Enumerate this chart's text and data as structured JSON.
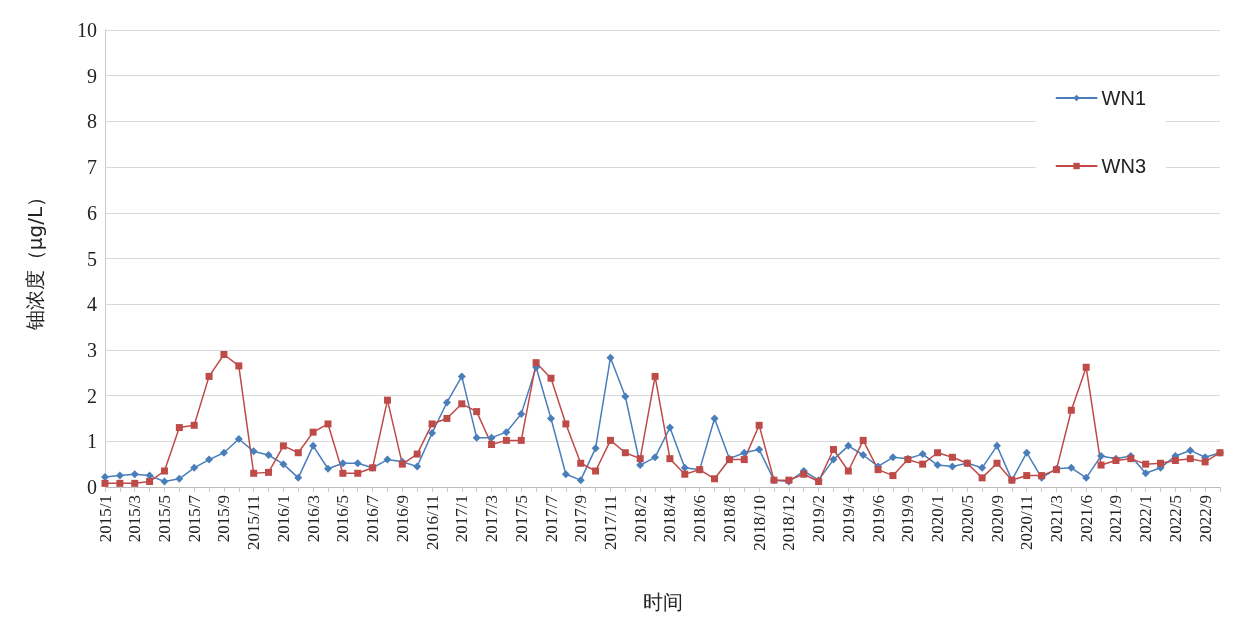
{
  "chart_data": {
    "type": "line",
    "xlabel": "时间",
    "ylabel": "铀浓度（μg/L）",
    "categories": [
      "2015/1",
      null,
      "2015/3",
      null,
      "2015/5",
      null,
      "2015/7",
      null,
      "2015/9",
      null,
      "2015/11",
      null,
      "2016/1",
      null,
      "2016/3",
      null,
      "2016/5",
      null,
      "2016/7",
      null,
      "2016/9",
      null,
      "2016/11",
      null,
      "2017/1",
      null,
      "2017/3",
      null,
      "2017/5",
      null,
      "2017/7",
      null,
      "2017/9",
      null,
      "2017/11",
      null,
      "2018/2",
      null,
      "2018/4",
      null,
      "2018/6",
      null,
      "2018/8",
      null,
      "2018/10",
      null,
      "2018/12",
      null,
      "2019/2",
      null,
      "2019/4",
      null,
      "2019/6",
      null,
      "2019/9",
      null,
      "2020/1",
      null,
      "2020/5",
      null,
      "2020/9",
      null,
      "2020/11",
      null,
      "2021/3",
      null,
      "2021/6",
      null,
      "2021/9",
      null,
      "2022/1",
      null,
      "2022/5",
      null,
      "2022/9",
      null
    ],
    "series": [
      {
        "name": "WN1",
        "color": "#4a7ebb",
        "marker": "diamond",
        "values": [
          0.22,
          0.25,
          0.28,
          0.25,
          0.12,
          0.18,
          0.42,
          0.6,
          0.75,
          1.05,
          0.78,
          0.7,
          0.5,
          0.2,
          0.9,
          0.4,
          0.52,
          0.52,
          0.42,
          0.6,
          0.55,
          0.45,
          1.18,
          1.85,
          2.42,
          1.08,
          1.08,
          1.2,
          1.6,
          2.62,
          1.5,
          0.28,
          0.15,
          0.85,
          2.83,
          1.98,
          0.48,
          0.65,
          1.3,
          0.42,
          0.38,
          1.5,
          0.62,
          0.75,
          0.82,
          0.15,
          0.12,
          0.35,
          0.15,
          0.6,
          0.9,
          0.7,
          0.45,
          0.65,
          0.62,
          0.72,
          0.48,
          0.45,
          0.52,
          0.42,
          0.9,
          0.15,
          0.75,
          0.2,
          0.4,
          0.42,
          0.2,
          0.68,
          0.62,
          0.68,
          0.3,
          0.42,
          0.68,
          0.8,
          0.65,
          0.75
        ]
      },
      {
        "name": "WN3",
        "color": "#be4b48",
        "marker": "square",
        "values": [
          0.08,
          0.08,
          0.08,
          0.12,
          0.35,
          1.3,
          1.35,
          2.42,
          2.9,
          2.65,
          0.3,
          0.32,
          0.9,
          0.75,
          1.2,
          1.38,
          0.3,
          0.3,
          0.42,
          1.9,
          0.5,
          0.72,
          1.38,
          1.5,
          1.82,
          1.65,
          0.93,
          1.02,
          1.02,
          2.72,
          2.38,
          1.38,
          0.52,
          0.35,
          1.02,
          0.75,
          0.62,
          2.42,
          0.62,
          0.28,
          0.38,
          0.18,
          0.6,
          0.6,
          1.35,
          0.15,
          0.15,
          0.28,
          0.12,
          0.82,
          0.35,
          1.02,
          0.38,
          0.25,
          0.6,
          0.5,
          0.75,
          0.65,
          0.52,
          0.2,
          0.52,
          0.15,
          0.25,
          0.25,
          0.38,
          1.68,
          2.62,
          0.48,
          0.58,
          0.62,
          0.5,
          0.52,
          0.58,
          0.62,
          0.55,
          0.75
        ]
      }
    ],
    "ylim": [
      0,
      10
    ],
    "yticks": [
      0,
      1,
      2,
      3,
      4,
      5,
      6,
      7,
      8,
      9,
      10
    ],
    "grid": "y",
    "legend": "top right"
  }
}
